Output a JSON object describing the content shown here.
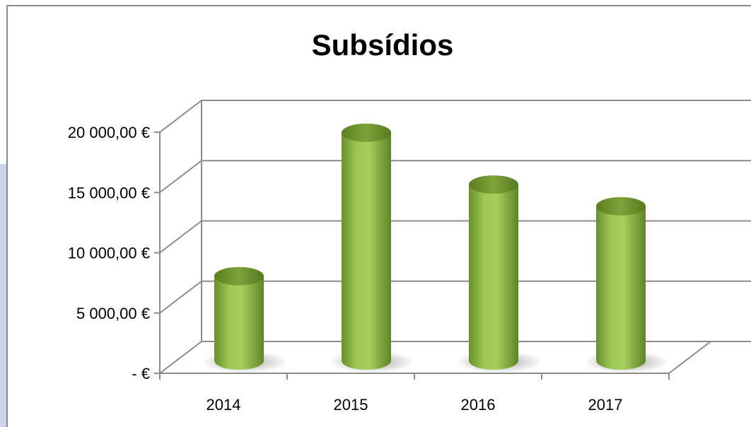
{
  "chart_data": {
    "type": "bar",
    "title": "Subsídios",
    "categories": [
      "2014",
      "2015",
      "2016",
      "2017"
    ],
    "values": [
      7000,
      18900,
      14600,
      12800
    ],
    "ylim": [
      0,
      20000
    ],
    "y_tick_values": [
      0,
      5000,
      10000,
      15000,
      20000
    ],
    "y_tick_labels": [
      "-  €",
      "5 000,00 €",
      "10 000,00 €",
      "15 000,00 €",
      "20 000,00 €"
    ],
    "xlabel": "",
    "ylabel": "",
    "grid": true,
    "legend": "none",
    "style": "3d-cylinder",
    "bar_color": "#8db83f"
  }
}
